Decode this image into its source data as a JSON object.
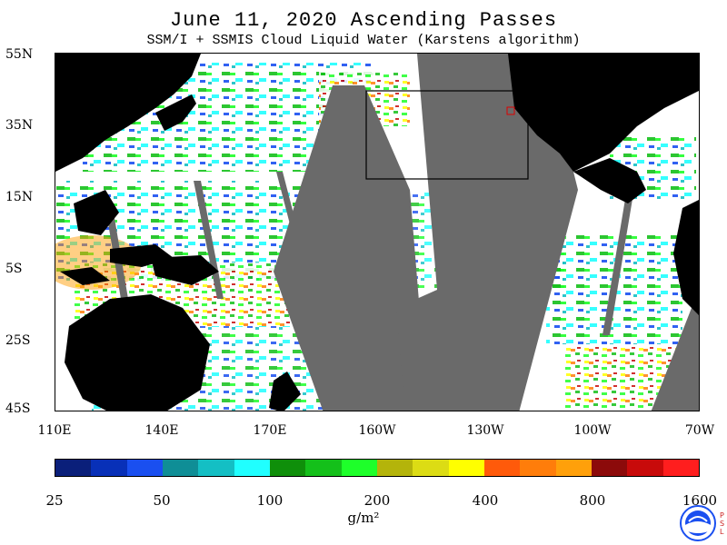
{
  "title": "June 11, 2020  Ascending Passes",
  "subtitle": "SSM/I + SSMIS Cloud Liquid Water (Karstens algorithm)",
  "latitude_labels": [
    "55N",
    "35N",
    "15N",
    "5S",
    "25S",
    "45S"
  ],
  "longitude_labels": [
    "110E",
    "140E",
    "170E",
    "160W",
    "130W",
    "100W",
    "70W"
  ],
  "colorbar": {
    "tick_labels": [
      "25",
      "50",
      "100",
      "200",
      "400",
      "800",
      "1600"
    ],
    "colors": [
      "#0a1f7a",
      "#0830b8",
      "#1a4ff0",
      "#0f8e96",
      "#14bfc4",
      "#20ffff",
      "#0f8f0a",
      "#14c01a",
      "#1eff2a",
      "#b4b40a",
      "#dcdc14",
      "#ffff00",
      "#ff5a0a",
      "#ff7d0a",
      "#ffa00a",
      "#8c0a0a",
      "#c80a0a",
      "#ff1e1e"
    ],
    "unit": "g/m²"
  },
  "colors": {
    "land": "#000000",
    "no_data": "#6a6a6a",
    "ocean_clear": "#ffffff"
  },
  "logo": {
    "name": "NOAA",
    "side_text": "PSL"
  }
}
